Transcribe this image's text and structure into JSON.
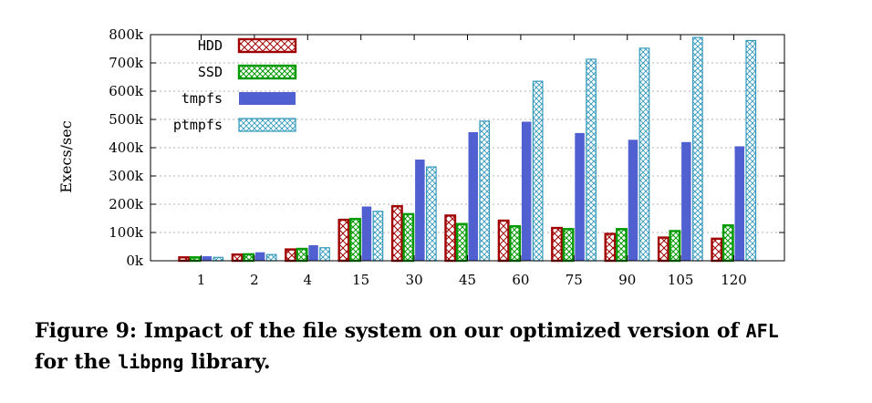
{
  "chart_data": {
    "type": "bar",
    "ylabel": "Execs/sec",
    "xlabel": "",
    "ylim": [
      0,
      800000
    ],
    "yticks": [
      0,
      100000,
      200000,
      300000,
      400000,
      500000,
      600000,
      700000,
      800000
    ],
    "ytick_labels": [
      "0k",
      "100k",
      "200k",
      "300k",
      "400k",
      "500k",
      "600k",
      "700k",
      "800k"
    ],
    "categories": [
      "1",
      "2",
      "4",
      "15",
      "30",
      "45",
      "60",
      "75",
      "90",
      "105",
      "120"
    ],
    "legend_position": "top-left",
    "grid": true,
    "series": [
      {
        "name": "HDD",
        "color": "#a00000",
        "pattern": "crosshatch-outline",
        "values": [
          12000,
          22000,
          40000,
          145000,
          193000,
          160000,
          142000,
          116000,
          95000,
          82000,
          78000
        ]
      },
      {
        "name": "SSD",
        "color": "#009900",
        "pattern": "crosshatch-outline",
        "values": [
          12000,
          23000,
          42000,
          148000,
          165000,
          130000,
          122000,
          112000,
          112000,
          105000,
          125000
        ]
      },
      {
        "name": "tmpfs",
        "color": "#5060d0",
        "pattern": "solid",
        "values": [
          16000,
          30000,
          55000,
          192000,
          358000,
          455000,
          492000,
          452000,
          428000,
          420000,
          405000
        ]
      },
      {
        "name": "ptmpfs",
        "color": "#3399bb",
        "pattern": "crosshatch-outline",
        "values": [
          12000,
          22000,
          46000,
          175000,
          332000,
          494000,
          635000,
          713000,
          752000,
          790000,
          779000
        ]
      }
    ]
  },
  "caption": {
    "prefix": "Figure 9: Impact of the file system on our optimized version of",
    "code1": "AFL",
    "middle": "for the",
    "code2": "libpng",
    "suffix": "library."
  }
}
